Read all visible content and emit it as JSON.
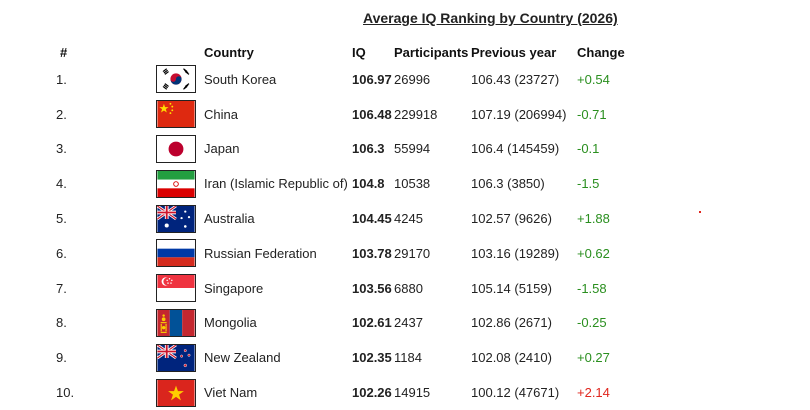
{
  "title": "Average IQ Ranking by Country (2026)",
  "headers": {
    "rank": "#",
    "country": "Country",
    "iq": "IQ",
    "participants": "Participants",
    "previous": "Previous year",
    "change": "Change"
  },
  "rows": [
    {
      "rank": "1.",
      "flag": "south-korea-flag",
      "country": "South Korea",
      "iq": "106.97",
      "participants": "26996",
      "previous": "106.43 (23727)",
      "change": "+0.54"
    },
    {
      "rank": "2.",
      "flag": "china-flag",
      "country": "China",
      "iq": "106.48",
      "participants": "229918",
      "previous": "107.19 (206994)",
      "change": "-0.71"
    },
    {
      "rank": "3.",
      "flag": "japan-flag",
      "country": "Japan",
      "iq": "106.3",
      "participants": "55994",
      "previous": "106.4 (145459)",
      "change": "-0.1"
    },
    {
      "rank": "4.",
      "flag": "iran-flag",
      "country": "Iran (Islamic Republic of)",
      "iq": "104.8",
      "participants": "10538",
      "previous": "106.3 (3850)",
      "change": "-1.5"
    },
    {
      "rank": "5.",
      "flag": "australia-flag",
      "country": "Australia",
      "iq": "104.45",
      "participants": "4245",
      "previous": "102.57 (9626)",
      "change": "+1.88"
    },
    {
      "rank": "6.",
      "flag": "russia-flag",
      "country": "Russian Federation",
      "iq": "103.78",
      "participants": "29170",
      "previous": "103.16 (19289)",
      "change": "+0.62"
    },
    {
      "rank": "7.",
      "flag": "singapore-flag",
      "country": "Singapore",
      "iq": "103.56",
      "participants": "6880",
      "previous": "105.14 (5159)",
      "change": "-1.58"
    },
    {
      "rank": "8.",
      "flag": "mongolia-flag",
      "country": "Mongolia",
      "iq": "102.61",
      "participants": "2437",
      "previous": "102.86 (2671)",
      "change": "-0.25"
    },
    {
      "rank": "9.",
      "flag": "new-zealand-flag",
      "country": "New Zealand",
      "iq": "102.35",
      "participants": "1184",
      "previous": "102.08 (2410)",
      "change": "+0.27"
    },
    {
      "rank": "10.",
      "flag": "vietnam-flag",
      "country": "Viet Nam",
      "iq": "102.26",
      "participants": "14915",
      "previous": "100.12 (47671)",
      "change": "+2.14"
    }
  ],
  "colors": {
    "change_text": "#2a8f1f",
    "change_highlight": "#e0261e"
  }
}
